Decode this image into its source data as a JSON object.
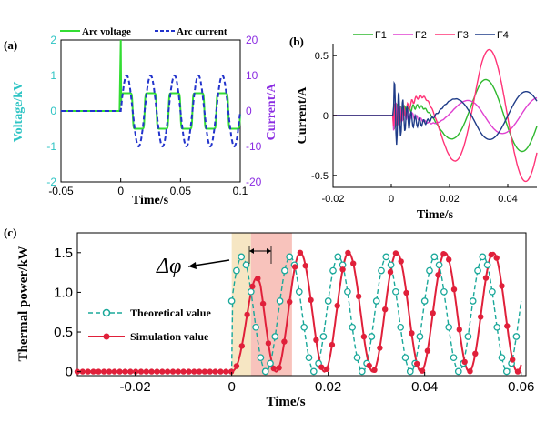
{
  "chart_data": [
    {
      "panel_label": "(a)",
      "type": "line",
      "xlabel": "Time/s",
      "ylabel_left": "Voltage/kV",
      "ylabel_right": "Current/A",
      "xlim": [
        -0.05,
        0.1
      ],
      "ylim_left": [
        -2,
        2
      ],
      "ylim_right": [
        -20,
        20
      ],
      "x_ticks": [
        "-0.05",
        "0",
        "0.05",
        "0.1"
      ],
      "y_ticks_left": [
        "-2",
        "-1",
        "0",
        "1",
        "2"
      ],
      "y_ticks_right": [
        "-20",
        "-10",
        "0",
        "10",
        "20"
      ],
      "legend_position": "top",
      "colors": {
        "left_axis": "#2ec4c4",
        "right_axis": "#8a2be2"
      },
      "series": [
        {
          "name": "Arc voltage",
          "color": "#33dd33",
          "axis": "left",
          "style": "solid",
          "description_values": {
            "pre_arc": 0,
            "spike_at_0": 2.0,
            "plateau_amplitude": 0.5,
            "frequency_hz": 50,
            "t_start": 0,
            "t_end": 0.1
          }
        },
        {
          "name": "Arc current",
          "color": "#2233cc",
          "axis": "right",
          "style": "dashed",
          "description_values": {
            "pre_arc": 0,
            "amplitude": 10,
            "frequency_hz": 50,
            "t_start": 0,
            "t_end": 0.1
          }
        }
      ]
    },
    {
      "panel_label": "(b)",
      "type": "line",
      "xlabel": "Time/s",
      "ylabel": "Current/A",
      "xlim": [
        -0.02,
        0.05
      ],
      "ylim": [
        -0.6,
        0.6
      ],
      "x_ticks": [
        "-0.02",
        "0",
        "0.02",
        "0.04"
      ],
      "y_ticks": [
        "-0.5",
        "0",
        "0.5"
      ],
      "legend_position": "top",
      "series": [
        {
          "name": "F1",
          "color": "#2eb82e",
          "amplitude": 0.3,
          "phase": -0.3
        },
        {
          "name": "F2",
          "color": "#e040d0",
          "amplitude": 0.15,
          "phase": 1.4
        },
        {
          "name": "F3",
          "color": "#ff3377",
          "amplitude": 0.55,
          "phase": -0.6
        },
        {
          "name": "F4",
          "color": "#1f3c88",
          "amplitude": 0.2,
          "phase": 2.5
        }
      ]
    },
    {
      "panel_label": "(c)",
      "type": "line",
      "xlabel": "Time/s",
      "ylabel": "Thermal power/kW",
      "xlim": [
        -0.032,
        0.061
      ],
      "ylim": [
        -0.05,
        1.75
      ],
      "x_ticks": [
        "-0.02",
        "0",
        "0.02",
        "0.04",
        "0.06"
      ],
      "y_ticks": [
        "0",
        "0.5",
        "1.0",
        "1.5"
      ],
      "legend_position": "left",
      "annotation": "Δφ",
      "highlight_regions": [
        {
          "x0": 0,
          "x1": 0.004,
          "color": "#f5e2b8"
        },
        {
          "x0": 0.004,
          "x1": 0.0125,
          "color": "#f7b8b0"
        }
      ],
      "series": [
        {
          "name": "Theoretical value",
          "color": "#1aa89a",
          "style": "dashed-open-circles",
          "peak": 1.45,
          "frequency_hz": 100,
          "marker_step": 0.001
        },
        {
          "name": "Simulation value",
          "color": "#e0203a",
          "style": "solid-filled-circles",
          "peak": 1.5,
          "frequency_hz": 100,
          "phase_lag_s": 0.004,
          "marker_step": 0.0011
        }
      ]
    }
  ]
}
